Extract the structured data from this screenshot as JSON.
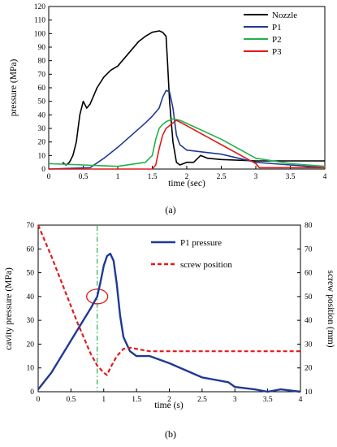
{
  "chart_data": [
    {
      "type": "line",
      "panel_label": "(a)",
      "xlabel": "time (sec)",
      "ylabel": "pressure (MPa)",
      "xlim": [
        0,
        4
      ],
      "ylim": [
        0,
        120
      ],
      "xticks": [
        "0",
        "0.5",
        "1",
        "1.5",
        "2",
        "2.5",
        "3",
        "3.5",
        "4"
      ],
      "yticks": [
        "0",
        "10",
        "20",
        "30",
        "40",
        "50",
        "60",
        "70",
        "80",
        "90",
        "100",
        "110",
        "120"
      ],
      "grid": false,
      "legend_position": "top-right",
      "series": [
        {
          "name": "Nozzle",
          "color": "#000000",
          "x": [
            0.2,
            0.25,
            0.3,
            0.35,
            0.4,
            0.45,
            0.5,
            0.55,
            0.6,
            0.7,
            0.8,
            0.9,
            1.0,
            1.1,
            1.2,
            1.3,
            1.4,
            1.5,
            1.6,
            1.65,
            1.7,
            1.72,
            1.75,
            1.8,
            1.85,
            1.9,
            2.0,
            2.1,
            2.2,
            2.3,
            2.5,
            3.0,
            3.5,
            4.0
          ],
          "y": [
            5,
            3,
            5,
            10,
            20,
            40,
            50,
            45,
            48,
            60,
            68,
            73,
            76,
            82,
            88,
            94,
            98,
            101,
            102,
            101,
            98,
            80,
            50,
            20,
            5,
            3,
            5,
            5,
            10,
            8,
            7,
            6,
            6,
            6
          ]
        },
        {
          "name": "P1",
          "color": "#1f3a93",
          "x": [
            0,
            0.6,
            0.8,
            1.0,
            1.2,
            1.4,
            1.5,
            1.6,
            1.65,
            1.7,
            1.75,
            1.8,
            1.85,
            1.9,
            2.0,
            2.5,
            3.0,
            3.5,
            4.0
          ],
          "y": [
            0,
            1,
            8,
            16,
            25,
            34,
            39,
            45,
            53,
            58,
            57,
            45,
            25,
            18,
            14,
            11,
            5,
            3,
            1
          ]
        },
        {
          "name": "P2",
          "color": "#22b14c",
          "x": [
            0,
            0.5,
            1.0,
            1.4,
            1.5,
            1.55,
            1.6,
            1.65,
            1.7,
            1.8,
            1.9,
            2.5,
            3.0,
            3.5,
            4.0
          ],
          "y": [
            4,
            3,
            2,
            5,
            10,
            22,
            30,
            33,
            35,
            37,
            36,
            22,
            8,
            4,
            2
          ]
        },
        {
          "name": "P3",
          "color": "#e11b1b",
          "x": [
            0,
            1.5,
            1.55,
            1.6,
            1.65,
            1.7,
            1.8,
            1.85,
            2.0,
            2.5,
            3.0,
            3.05,
            3.5,
            4.0
          ],
          "y": [
            0,
            0,
            3,
            15,
            25,
            30,
            34,
            36,
            32,
            18,
            4,
            1,
            1,
            1
          ]
        }
      ]
    },
    {
      "type": "line",
      "panel_label": "(b)",
      "xlabel": "time (s)",
      "ylabel": "cavity pressure (MPa)",
      "y2label": "screw position (mm)",
      "xlim": [
        0,
        4
      ],
      "ylim": [
        0,
        70
      ],
      "y2lim": [
        10,
        80
      ],
      "xticks": [
        "0",
        "0.5",
        "1",
        "1.5",
        "2",
        "2.5",
        "3",
        "3.5",
        "4"
      ],
      "yticks": [
        "0",
        "10",
        "20",
        "30",
        "40",
        "50",
        "60",
        "70"
      ],
      "y2ticks": [
        "10",
        "20",
        "30",
        "40",
        "50",
        "60",
        "70",
        "80"
      ],
      "grid": false,
      "legend_position": "top-right",
      "vertical_line_x": 0.9,
      "highlight_point": {
        "x": 0.9,
        "y": 40
      },
      "series": [
        {
          "name": "P1 pressure",
          "color": "#1f3a93",
          "axis": "left",
          "x": [
            0,
            0.2,
            0.4,
            0.6,
            0.8,
            0.9,
            0.95,
            1.0,
            1.05,
            1.1,
            1.15,
            1.2,
            1.25,
            1.3,
            1.4,
            1.5,
            1.7,
            2.0,
            2.5,
            2.9,
            3.0,
            3.3,
            3.5,
            3.7,
            4.0
          ],
          "y": [
            1,
            8,
            17,
            26,
            35,
            40,
            46,
            53,
            57,
            58,
            55,
            45,
            32,
            23,
            17,
            15,
            15,
            12,
            6,
            4,
            2,
            1,
            0,
            1,
            0
          ]
        },
        {
          "name": "screw position",
          "color": "#e11b1b",
          "axis": "right",
          "dashed": true,
          "x": [
            0,
            0.2,
            0.4,
            0.6,
            0.8,
            0.9,
            1.0,
            1.05,
            1.1,
            1.2,
            1.3,
            1.4,
            1.5,
            1.7,
            2.0,
            3.0,
            4.0
          ],
          "y": [
            80,
            67,
            53,
            39,
            26,
            21,
            18,
            17,
            20,
            25,
            28,
            28.5,
            28,
            27,
            27,
            27,
            27
          ]
        }
      ]
    }
  ]
}
